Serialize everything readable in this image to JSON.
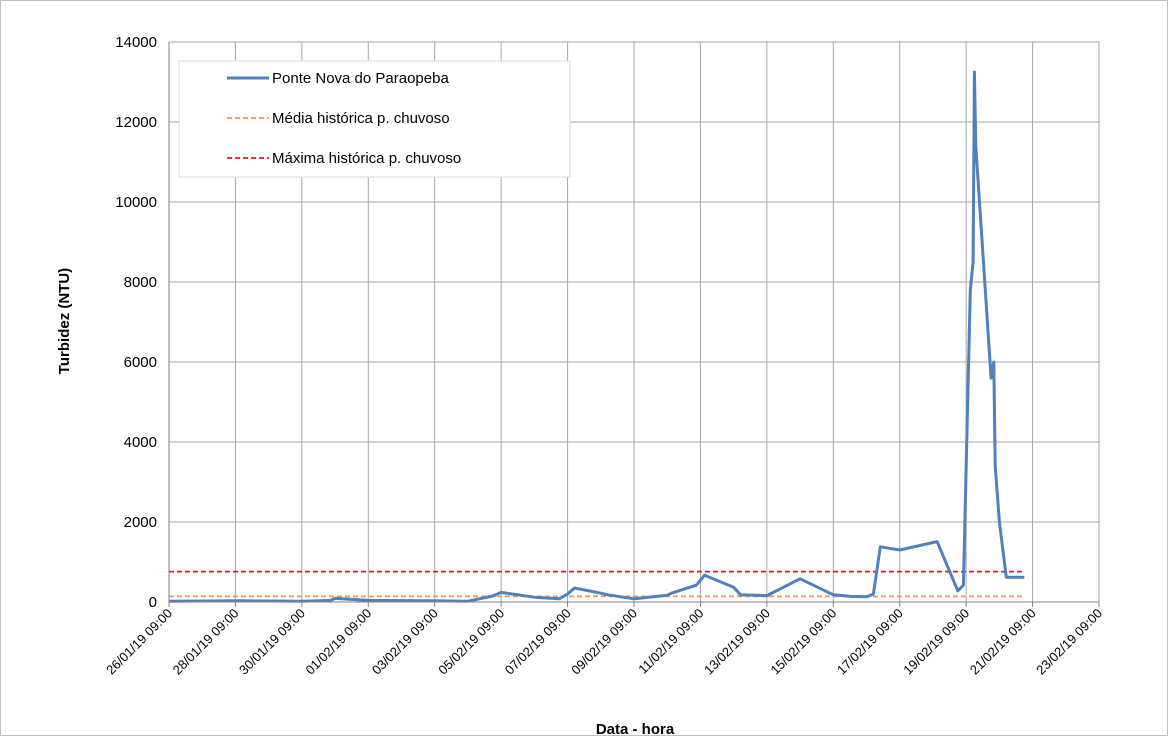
{
  "chart_data": {
    "type": "line",
    "xlabel": "Data - hora",
    "ylabel": "Turbidez (NTU)",
    "ylim": [
      0,
      14000
    ],
    "y_ticks": [
      "0",
      "2000",
      "4000",
      "6000",
      "8000",
      "10000",
      "12000",
      "14000"
    ],
    "x_range": [
      "26/01/19 09:00",
      "23/02/19 09:00"
    ],
    "x_tick_labels": [
      "26/01/19 09:00",
      "28/01/19 09:00",
      "30/01/19 09:00",
      "01/02/19 09:00",
      "03/02/19 09:00",
      "05/02/19 09:00",
      "07/02/19 09:00",
      "09/02/19 09:00",
      "11/02/19 09:00",
      "13/02/19 09:00",
      "15/02/19 09:00",
      "17/02/19 09:00",
      "19/02/19 09:00",
      "21/02/19 09:00",
      "23/02/19 09:00"
    ],
    "grid": true,
    "legend_position": "top-left",
    "series": [
      {
        "name": "Ponte Nova do Paraopeba",
        "color": "#4f81bd",
        "style": "solid",
        "x": [
          "26/01/19 09:00",
          "28/01/19 09:00",
          "30/01/19 09:00",
          "31/01/19 06:00",
          "31/01/19 09:00",
          "31/01/19 14:00",
          "01/02/19 09:00",
          "03/02/19 09:00",
          "04/02/19 09:00",
          "05/02/19 03:00",
          "05/02/19 09:00",
          "06/02/19 09:00",
          "07/02/19 03:00",
          "07/02/19 09:00",
          "07/02/19 14:00",
          "08/02/19 09:00",
          "08/02/19 14:00",
          "09/02/19 09:00",
          "10/02/19 09:00",
          "10/02/19 12:00",
          "11/02/19 06:00",
          "11/02/19 12:00",
          "12/02/19 09:00",
          "12/02/19 14:00",
          "13/02/19 09:00",
          "14/02/19 09:00",
          "15/02/19 09:00",
          "15/02/19 22:00",
          "16/02/19 09:00",
          "16/02/19 14:00",
          "16/02/19 19:00",
          "17/02/19 09:00",
          "18/02/19 12:00",
          "19/02/19 03:00",
          "19/02/19 07:00",
          "19/02/19 12:00",
          "19/02/19 14:00",
          "19/02/19 15:00",
          "19/02/19 16:00",
          "20/02/19 03:00",
          "20/02/19 05:00",
          "20/02/19 06:00",
          "20/02/19 09:00",
          "20/02/19 14:00",
          "21/02/19 03:00"
        ],
        "y": [
          20,
          30,
          20,
          40,
          90,
          80,
          40,
          30,
          20,
          150,
          240,
          120,
          80,
          200,
          350,
          220,
          180,
          80,
          170,
          220,
          420,
          670,
          370,
          180,
          160,
          580,
          180,
          140,
          130,
          200,
          1380,
          1300,
          1510,
          280,
          420,
          7800,
          8500,
          13250,
          11400,
          5600,
          6000,
          3400,
          2000,
          620,
          620
        ]
      },
      {
        "name": "Média histórica p. chuvoso",
        "color": "#f79646",
        "style": "dashed",
        "x": [
          "26/01/19 09:00",
          "21/02/19 03:00"
        ],
        "y": [
          140,
          140
        ]
      },
      {
        "name": "Máxima histórica p. chuvoso",
        "color": "#e31a1c",
        "style": "dashed",
        "x": [
          "26/01/19 09:00",
          "21/02/19 03:00"
        ],
        "y": [
          760,
          760
        ]
      }
    ]
  }
}
